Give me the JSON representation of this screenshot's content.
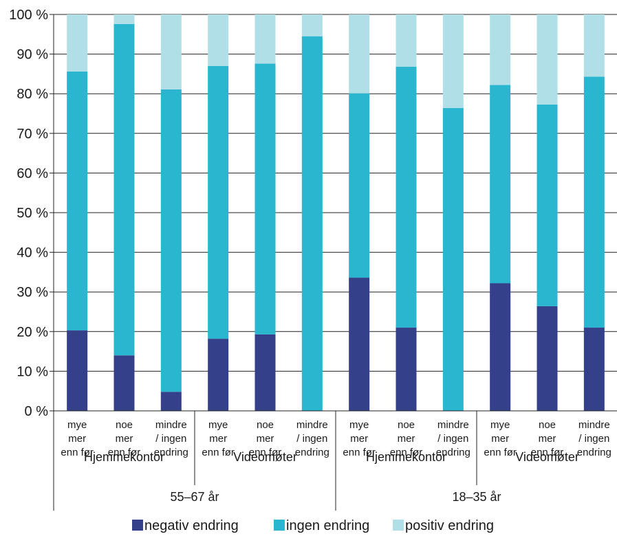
{
  "chart_data": {
    "type": "bar",
    "stacked": true,
    "y_ticks": [
      "0 %",
      "10 %",
      "20 %",
      "30 %",
      "40 %",
      "50 %",
      "60 %",
      "70 %",
      "80 %",
      "90 %",
      "100 %"
    ],
    "ylim": [
      0,
      100
    ],
    "grid": true,
    "legend_position": "bottom",
    "categories": [
      [
        "mye",
        "mer",
        "enn før"
      ],
      [
        "noe",
        "mer",
        "enn før"
      ],
      [
        "mindre",
        "/ ingen",
        "endring"
      ],
      [
        "mye",
        "mer",
        "enn før"
      ],
      [
        "noe",
        "mer",
        "enn før"
      ],
      [
        "mindre",
        "/ ingen",
        "endring"
      ],
      [
        "mye",
        "mer",
        "enn før"
      ],
      [
        "noe",
        "mer",
        "enn før"
      ],
      [
        "mindre",
        "/ ingen",
        "endring"
      ],
      [
        "mye",
        "mer",
        "enn før"
      ],
      [
        "noe",
        "mer",
        "enn før"
      ],
      [
        "mindre",
        "/ ingen",
        "endring"
      ]
    ],
    "groups_level1": [
      {
        "label": "Hjemmekontor",
        "span": 3
      },
      {
        "label": "Videomøter",
        "span": 3
      },
      {
        "label": "Hjemmekontor",
        "span": 3
      },
      {
        "label": "Videomøter",
        "span": 3
      }
    ],
    "groups_level2": [
      {
        "label": "55–67 år",
        "span": 6
      },
      {
        "label": "18–35 år",
        "span": 6
      }
    ],
    "series": [
      {
        "name": "negativ endring",
        "color": "#35408a",
        "values": [
          20.3,
          14,
          4.8,
          18.2,
          19.3,
          0,
          33.6,
          21,
          0,
          32.2,
          26.4,
          21
        ]
      },
      {
        "name": "ingen endring",
        "color": "#2bb6cf",
        "values": [
          65.3,
          83.6,
          76.3,
          68.8,
          68.3,
          94.5,
          46.5,
          65.8,
          76.4,
          50,
          50.9,
          63.3
        ]
      },
      {
        "name": "positiv endring",
        "color": "#b1dfe8",
        "values": [
          14.4,
          2.4,
          18.9,
          13,
          12.4,
          5.5,
          19.9,
          13.2,
          23.6,
          17.8,
          22.7,
          15.7
        ]
      }
    ]
  }
}
